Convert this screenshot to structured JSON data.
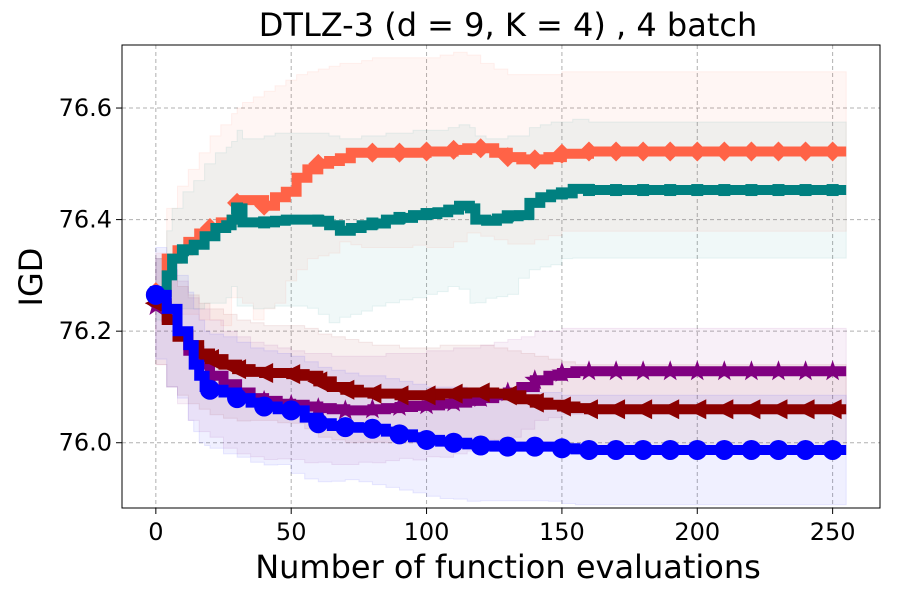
{
  "chart_data": {
    "type": "line",
    "title": "DTLZ-3 (d = 9, K = 4) , 4 batch",
    "xlabel": "Number of function evaluations",
    "ylabel": "IGD",
    "xlim": [
      -12.5,
      267.5
    ],
    "ylim": [
      75.883,
      76.713
    ],
    "xticks": [
      0,
      50,
      100,
      150,
      200,
      250
    ],
    "yticks": [
      76.0,
      76.2,
      76.4,
      76.6
    ],
    "xtick_labels": [
      "0",
      "50",
      "100",
      "150",
      "200",
      "250"
    ],
    "ytick_labels": [
      "76.0",
      "76.2",
      "76.4",
      "76.6"
    ],
    "grid": true,
    "legend": "none",
    "series": [
      {
        "name": "tomato-diamond",
        "color": "#ff6347",
        "marker": "diamond",
        "x": [
          0,
          4,
          8,
          12,
          16,
          20,
          24,
          28,
          30,
          32,
          36,
          40,
          44,
          48,
          52,
          56,
          60,
          64,
          68,
          72,
          76,
          80,
          85,
          90,
          95,
          100,
          105,
          110,
          115,
          120,
          125,
          130,
          135,
          140,
          145,
          150,
          160,
          170,
          180,
          190,
          200,
          210,
          220,
          230,
          240,
          250,
          255
        ],
        "y": [
          76.27,
          76.33,
          76.345,
          76.36,
          76.375,
          76.385,
          76.395,
          76.4,
          76.43,
          76.435,
          76.435,
          76.425,
          76.44,
          76.45,
          76.475,
          76.49,
          76.5,
          76.505,
          76.51,
          76.52,
          76.52,
          76.52,
          76.52,
          76.52,
          76.52,
          76.522,
          76.522,
          76.525,
          76.528,
          76.528,
          76.52,
          76.512,
          76.508,
          76.508,
          76.512,
          76.518,
          76.522,
          76.522,
          76.522,
          76.522,
          76.522,
          76.522,
          76.522,
          76.522,
          76.522,
          76.522,
          76.522
        ],
        "upper": [
          76.34,
          76.42,
          76.46,
          76.49,
          76.52,
          76.55,
          76.57,
          76.59,
          76.6,
          76.61,
          76.62,
          76.63,
          76.64,
          76.65,
          76.66,
          76.665,
          76.67,
          76.675,
          76.68,
          76.68,
          76.685,
          76.69,
          76.69,
          76.69,
          76.69,
          76.69,
          76.695,
          76.7,
          76.695,
          76.68,
          76.67,
          76.66,
          76.66,
          76.66,
          76.66,
          76.665,
          76.665,
          76.665,
          76.665,
          76.665,
          76.665,
          76.665,
          76.665,
          76.665,
          76.665,
          76.665,
          76.665
        ],
        "lower": [
          76.2,
          76.24,
          76.23,
          76.23,
          76.23,
          76.22,
          76.22,
          76.21,
          76.26,
          76.26,
          76.25,
          76.22,
          76.24,
          76.25,
          76.29,
          76.31,
          76.33,
          76.335,
          76.34,
          76.36,
          76.355,
          76.35,
          76.35,
          76.35,
          76.35,
          76.354,
          76.35,
          76.35,
          76.36,
          76.376,
          76.37,
          76.364,
          76.356,
          76.356,
          76.364,
          76.371,
          76.379,
          76.379,
          76.379,
          76.379,
          76.379,
          76.379,
          76.379,
          76.379,
          76.379,
          76.379,
          76.379
        ]
      },
      {
        "name": "teal-square",
        "color": "#008080",
        "marker": "square",
        "x": [
          0,
          4,
          6,
          10,
          14,
          18,
          22,
          26,
          28,
          30,
          32,
          36,
          40,
          44,
          48,
          52,
          56,
          60,
          64,
          68,
          72,
          76,
          80,
          85,
          90,
          95,
          100,
          104,
          108,
          112,
          116,
          118,
          122,
          126,
          130,
          134,
          138,
          142,
          146,
          150,
          154,
          160,
          170,
          180,
          190,
          200,
          210,
          220,
          230,
          240,
          250,
          255
        ],
        "y": [
          76.27,
          76.3,
          76.33,
          76.345,
          76.355,
          76.37,
          76.385,
          76.39,
          76.4,
          76.42,
          76.395,
          76.395,
          76.395,
          76.398,
          76.4,
          76.4,
          76.4,
          76.398,
          76.39,
          76.38,
          76.385,
          76.39,
          76.393,
          76.4,
          76.403,
          76.408,
          76.41,
          76.413,
          76.418,
          76.425,
          76.42,
          76.4,
          76.398,
          76.402,
          76.406,
          76.408,
          76.43,
          76.44,
          76.445,
          76.447,
          76.455,
          76.453,
          76.453,
          76.453,
          76.453,
          76.453,
          76.453,
          76.453,
          76.453,
          76.453,
          76.453,
          76.453
        ],
        "upper": [
          76.33,
          76.38,
          76.42,
          76.45,
          76.47,
          76.5,
          76.52,
          76.53,
          76.54,
          76.56,
          76.545,
          76.545,
          76.55,
          76.555,
          76.555,
          76.555,
          76.555,
          76.555,
          76.55,
          76.545,
          76.545,
          76.55,
          76.55,
          76.555,
          76.555,
          76.56,
          76.56,
          76.56,
          76.565,
          76.57,
          76.565,
          76.55,
          76.545,
          76.545,
          76.55,
          76.55,
          76.565,
          76.57,
          76.575,
          76.575,
          76.58,
          76.575,
          76.575,
          76.575,
          76.575,
          76.575,
          76.575,
          76.575,
          76.575,
          76.575,
          76.575,
          76.575
        ],
        "lower": [
          76.21,
          76.22,
          76.24,
          76.24,
          76.24,
          76.24,
          76.25,
          76.25,
          76.26,
          76.28,
          76.245,
          76.245,
          76.24,
          76.241,
          76.245,
          76.245,
          76.245,
          76.241,
          76.23,
          76.215,
          76.225,
          76.23,
          76.236,
          76.245,
          76.251,
          76.256,
          76.26,
          76.266,
          76.271,
          76.28,
          76.275,
          76.25,
          76.251,
          76.259,
          76.262,
          76.266,
          76.295,
          76.31,
          76.315,
          76.319,
          76.33,
          76.331,
          76.331,
          76.331,
          76.331,
          76.331,
          76.331,
          76.331,
          76.331,
          76.331,
          76.331,
          76.331
        ]
      },
      {
        "name": "purple-star",
        "color": "#800080",
        "marker": "star",
        "x": [
          0,
          4,
          8,
          12,
          16,
          20,
          25,
          30,
          35,
          40,
          45,
          50,
          55,
          60,
          65,
          70,
          75,
          80,
          85,
          90,
          95,
          100,
          105,
          110,
          115,
          120,
          125,
          130,
          135,
          140,
          145,
          150,
          155,
          160,
          170,
          180,
          190,
          200,
          210,
          220,
          230,
          240,
          250,
          255
        ],
        "y": [
          76.245,
          76.225,
          76.195,
          76.165,
          76.14,
          76.12,
          76.105,
          76.09,
          76.08,
          76.075,
          76.07,
          76.068,
          76.065,
          76.062,
          76.06,
          76.058,
          76.058,
          76.06,
          76.062,
          76.064,
          76.066,
          76.067,
          76.07,
          76.072,
          76.075,
          76.08,
          76.085,
          76.09,
          76.1,
          76.112,
          76.12,
          76.125,
          76.128,
          76.128,
          76.128,
          76.128,
          76.128,
          76.128,
          76.128,
          76.128,
          76.128,
          76.128,
          76.128,
          76.128
        ],
        "upper": [
          76.33,
          76.31,
          76.29,
          76.26,
          76.24,
          76.22,
          76.2,
          76.19,
          76.18,
          76.175,
          76.17,
          76.165,
          76.16,
          76.16,
          76.155,
          76.155,
          76.155,
          76.155,
          76.16,
          76.16,
          76.16,
          76.165,
          76.165,
          76.17,
          76.17,
          76.175,
          76.18,
          76.185,
          76.19,
          76.2,
          76.2,
          76.205,
          76.205,
          76.205,
          76.205,
          76.205,
          76.205,
          76.205,
          76.205,
          76.205,
          76.205,
          76.205,
          76.205,
          76.205
        ],
        "lower": [
          76.16,
          76.14,
          76.1,
          76.07,
          76.04,
          76.02,
          76.01,
          75.99,
          75.98,
          75.975,
          75.97,
          75.971,
          75.97,
          75.964,
          75.965,
          75.961,
          75.961,
          75.965,
          75.964,
          75.968,
          75.972,
          75.969,
          75.975,
          75.974,
          75.98,
          75.985,
          75.99,
          75.995,
          76.01,
          76.024,
          76.04,
          76.045,
          76.051,
          76.051,
          76.051,
          76.051,
          76.051,
          76.051,
          76.051,
          76.051,
          76.051,
          76.051,
          76.051,
          76.051
        ]
      },
      {
        "name": "darkred-triangle",
        "color": "#8b0000",
        "marker": "triangle-left",
        "x": [
          0,
          4,
          8,
          12,
          16,
          20,
          25,
          30,
          35,
          40,
          45,
          50,
          55,
          60,
          65,
          70,
          75,
          80,
          85,
          90,
          95,
          100,
          105,
          110,
          115,
          120,
          125,
          130,
          135,
          140,
          145,
          150,
          155,
          160,
          170,
          180,
          190,
          200,
          210,
          220,
          230,
          240,
          250,
          255
        ],
        "y": [
          76.25,
          76.22,
          76.19,
          76.175,
          76.16,
          76.15,
          76.14,
          76.132,
          76.127,
          76.125,
          76.125,
          76.123,
          76.12,
          76.11,
          76.1,
          76.095,
          76.09,
          76.088,
          76.088,
          76.085,
          76.085,
          76.085,
          76.088,
          76.088,
          76.09,
          76.09,
          76.088,
          76.085,
          76.078,
          76.072,
          76.068,
          76.065,
          76.062,
          76.06,
          76.06,
          76.06,
          76.06,
          76.06,
          76.06,
          76.06,
          76.06,
          76.06,
          76.06,
          76.06
        ],
        "upper": [
          76.33,
          76.3,
          76.28,
          76.265,
          76.25,
          76.24,
          76.23,
          76.22,
          76.215,
          76.21,
          76.21,
          76.21,
          76.205,
          76.195,
          76.19,
          76.185,
          76.18,
          76.175,
          76.175,
          76.17,
          76.17,
          76.17,
          76.175,
          76.175,
          76.175,
          76.175,
          76.17,
          76.165,
          76.16,
          76.155,
          76.15,
          76.145,
          76.14,
          76.14,
          76.14,
          76.14,
          76.14,
          76.14,
          76.14,
          76.14,
          76.14,
          76.14,
          76.14,
          76.14
        ],
        "lower": [
          76.17,
          76.14,
          76.1,
          76.085,
          76.07,
          76.06,
          76.05,
          76.044,
          76.039,
          76.04,
          76.04,
          76.036,
          76.035,
          76.025,
          76.01,
          76.005,
          76.0,
          76.001,
          76.001,
          76.0,
          76.0,
          76.0,
          76.001,
          76.001,
          76.005,
          76.005,
          76.006,
          76.005,
          75.996,
          75.989,
          75.986,
          75.985,
          75.984,
          75.98,
          75.98,
          75.98,
          75.98,
          75.98,
          75.98,
          75.98,
          75.98,
          75.98,
          75.98,
          75.98
        ]
      },
      {
        "name": "blue-circle",
        "color": "#0000ff",
        "marker": "circle",
        "x": [
          0,
          4,
          8,
          12,
          14,
          16,
          18,
          20,
          25,
          30,
          35,
          40,
          45,
          50,
          55,
          60,
          65,
          70,
          75,
          80,
          85,
          90,
          95,
          100,
          105,
          110,
          115,
          120,
          125,
          130,
          135,
          140,
          145,
          150,
          155,
          160,
          170,
          180,
          190,
          200,
          210,
          220,
          230,
          240,
          250,
          255
        ],
        "y": [
          76.265,
          76.24,
          76.2,
          76.175,
          76.14,
          76.12,
          76.1,
          76.095,
          76.09,
          76.08,
          76.072,
          76.065,
          76.06,
          76.058,
          76.045,
          76.035,
          76.03,
          76.028,
          76.027,
          76.025,
          76.02,
          76.015,
          76.01,
          76.005,
          76.002,
          76.0,
          75.997,
          75.995,
          75.993,
          75.993,
          75.993,
          75.993,
          75.993,
          75.99,
          75.988,
          75.987,
          75.987,
          75.987,
          75.987,
          75.987,
          75.987,
          75.987,
          75.987,
          75.987,
          75.987,
          75.987
        ],
        "upper": [
          76.35,
          76.33,
          76.3,
          76.27,
          76.24,
          76.22,
          76.2,
          76.195,
          76.19,
          76.18,
          76.17,
          76.165,
          76.16,
          76.155,
          76.145,
          76.135,
          76.13,
          76.125,
          76.12,
          76.12,
          76.115,
          76.11,
          76.105,
          76.1,
          76.1,
          76.1,
          76.095,
          76.095,
          76.09,
          76.09,
          76.09,
          76.09,
          76.09,
          76.085,
          76.085,
          76.085,
          76.085,
          76.085,
          76.085,
          76.085,
          76.085,
          76.085,
          76.085,
          76.085,
          76.085,
          76.085
        ],
        "lower": [
          76.18,
          76.15,
          76.1,
          76.08,
          76.04,
          76.02,
          76.0,
          75.995,
          75.99,
          75.98,
          75.974,
          75.965,
          75.96,
          75.961,
          75.945,
          75.935,
          75.93,
          75.931,
          75.934,
          75.93,
          75.925,
          75.92,
          75.915,
          75.91,
          75.904,
          75.9,
          75.899,
          75.895,
          75.896,
          75.896,
          75.896,
          75.896,
          75.896,
          75.895,
          75.891,
          75.889,
          75.889,
          75.889,
          75.889,
          75.889,
          75.889,
          75.889,
          75.889,
          75.889,
          75.889,
          75.889
        ]
      }
    ]
  }
}
